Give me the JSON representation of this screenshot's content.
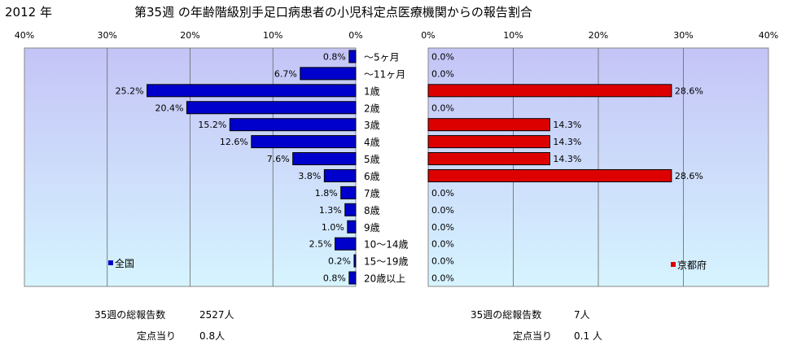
{
  "header": {
    "year": "2012 年",
    "title": "第35週 の年齢階級別手足口病患者の小児科定点医療機関からの報告割合"
  },
  "colors": {
    "national_bar": "#0000cc",
    "kyoto_bar": "#dd0000",
    "plot_top": "#c4c4f6",
    "plot_bottom": "#d6f4ff"
  },
  "chart_data": [
    {
      "type": "bar",
      "orientation": "horizontal",
      "direction": "reversed",
      "legend": "全国",
      "legend_position": "bottom-left",
      "xlim": [
        0,
        40
      ],
      "ticks": [
        40,
        30,
        20,
        10,
        0
      ],
      "tick_labels": [
        "40%",
        "30%",
        "20%",
        "10%",
        "0%"
      ],
      "grid": true,
      "categories": [
        "～5ヶ月",
        "～11ヶ月",
        "1歳",
        "2歳",
        "3歳",
        "4歳",
        "5歳",
        "6歳",
        "7歳",
        "8歳",
        "9歳",
        "10～14歳",
        "15～19歳",
        "20歳以上"
      ],
      "values": [
        0.8,
        6.7,
        25.2,
        20.4,
        15.2,
        12.6,
        7.6,
        3.8,
        1.8,
        1.3,
        1.0,
        2.5,
        0.2,
        0.8
      ],
      "value_labels": [
        "0.8%",
        "6.7%",
        "25.2%",
        "20.4%",
        "15.2%",
        "12.6%",
        "7.6%",
        "3.8%",
        "1.8%",
        "1.3%",
        "1.0%",
        "2.5%",
        "0.2%",
        "0.8%"
      ]
    },
    {
      "type": "bar",
      "orientation": "horizontal",
      "legend": "京都府",
      "legend_position": "bottom-right",
      "xlim": [
        0,
        40
      ],
      "ticks": [
        0,
        10,
        20,
        30,
        40
      ],
      "tick_labels": [
        "0%",
        "10%",
        "20%",
        "30%",
        "40%"
      ],
      "grid": true,
      "values": [
        0.0,
        0.0,
        28.6,
        0.0,
        14.3,
        14.3,
        14.3,
        28.6,
        0.0,
        0.0,
        0.0,
        0.0,
        0.0,
        0.0
      ],
      "value_labels": [
        "0.0%",
        "0.0%",
        "28.6%",
        "0.0%",
        "14.3%",
        "14.3%",
        "14.3%",
        "28.6%",
        "0.0%",
        "0.0%",
        "0.0%",
        "0.0%",
        "0.0%",
        "0.0%"
      ]
    }
  ],
  "footer": {
    "national": {
      "total_label": "35週の総報告数",
      "total_value": "2527人",
      "per_label": "定点当り",
      "per_value": "0.8人"
    },
    "kyoto": {
      "total_label": "35週の総報告数",
      "total_value": "7人",
      "per_label": "定点当り",
      "per_value": "0.1 人"
    }
  }
}
